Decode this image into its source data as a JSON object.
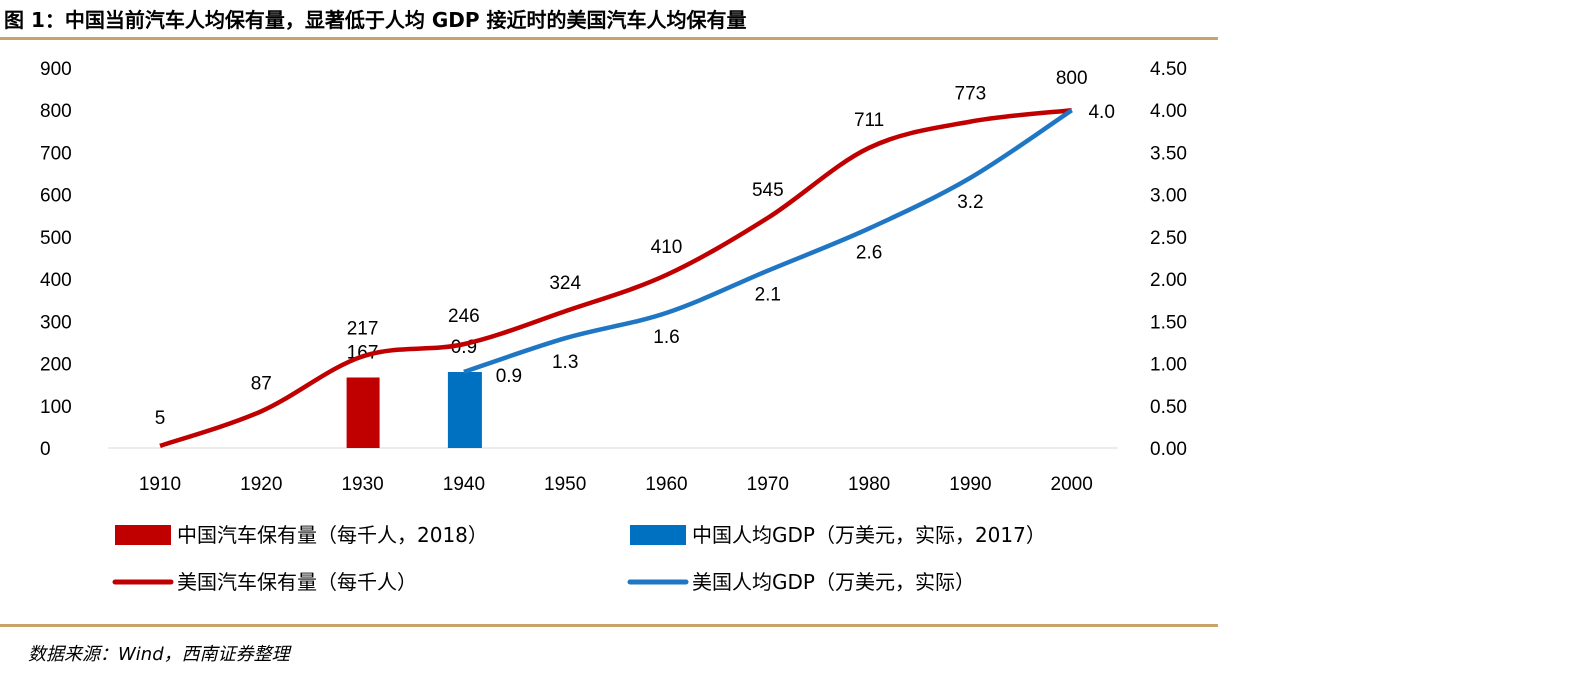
{
  "title": "图 1：中国当前汽车人均保有量，显著低于人均 GDP 接近时的美国汽车人均保有量",
  "source": "数据来源：Wind，西南证券整理",
  "chart_data": {
    "type": "line+bar",
    "categories": [
      "1910",
      "1920",
      "1930",
      "1940",
      "1950",
      "1960",
      "1970",
      "1980",
      "1990",
      "2000"
    ],
    "y_left": {
      "range": [
        0,
        900
      ],
      "ticks": [
        "0",
        "100",
        "200",
        "300",
        "400",
        "500",
        "600",
        "700",
        "800",
        "900"
      ]
    },
    "y_right": {
      "range": [
        0,
        4.5
      ],
      "ticks": [
        "0.00",
        "0.50",
        "1.00",
        "1.50",
        "2.00",
        "2.50",
        "3.00",
        "3.50",
        "4.00",
        "4.50"
      ]
    },
    "grid": false,
    "legend_placement": "bottom",
    "series": [
      {
        "name": "中国汽车保有量（每千人，2018）",
        "type": "bar",
        "axis": "left",
        "color": "#c00000",
        "category": "1930",
        "value": 167,
        "label": "167"
      },
      {
        "name": "中国人均GDP（万美元，实际，2017）",
        "type": "bar",
        "axis": "right",
        "color": "#0070c0",
        "category": "1940",
        "value": 0.9,
        "label": "0.9"
      },
      {
        "name": "美国汽车保有量（每千人）",
        "type": "line",
        "axis": "left",
        "color": "#c00000",
        "x": [
          "1910",
          "1920",
          "1930",
          "1940",
          "1950",
          "1960",
          "1970",
          "1980",
          "1990",
          "2000"
        ],
        "values": [
          5,
          87,
          217,
          246,
          324,
          410,
          545,
          711,
          773,
          800
        ],
        "labels": [
          "5",
          "87",
          "217",
          "246",
          "324",
          "410",
          "545",
          "711",
          "773",
          "800"
        ]
      },
      {
        "name": "美国人均GDP（万美元，实际）",
        "type": "line",
        "axis": "right",
        "color": "#1f77c4",
        "x": [
          "1940",
          "1950",
          "1960",
          "1970",
          "1980",
          "1990",
          "2000"
        ],
        "values": [
          0.9,
          1.3,
          1.6,
          2.1,
          2.6,
          3.2,
          4.0
        ],
        "labels": [
          "0.9",
          "1.3",
          "1.6",
          "2.1",
          "2.6",
          "3.2",
          "4.0"
        ]
      }
    ]
  }
}
